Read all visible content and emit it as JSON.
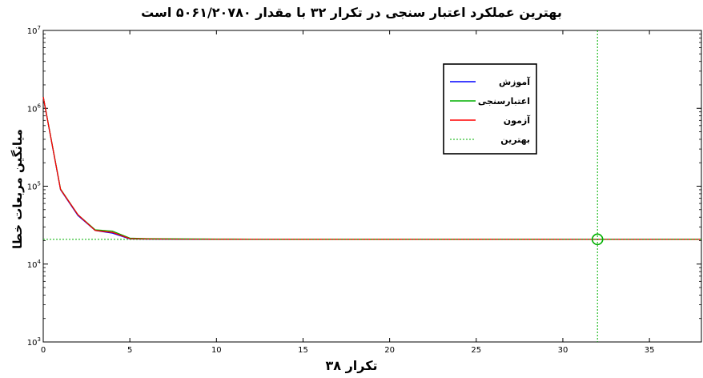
{
  "chart_data": {
    "type": "line",
    "title": "بهترین عملکرد اعتبار سنجی در تکرار ۳۲ با مقدار ۵۰۶۱/۲۰۷۸۰ است",
    "xlabel": "۳۸ تکرار",
    "ylabel": "میانگین مربعات خطا",
    "xlim": [
      0,
      38
    ],
    "ylim": [
      1000,
      10000000
    ],
    "yscale": "log",
    "x_ticks": [
      0,
      5,
      10,
      15,
      20,
      25,
      30,
      35
    ],
    "y_ticks": [
      {
        "value": 1000,
        "base": "10",
        "exp": "3"
      },
      {
        "value": 10000,
        "base": "10",
        "exp": "4"
      },
      {
        "value": 100000,
        "base": "10",
        "exp": "5"
      },
      {
        "value": 1000000,
        "base": "10",
        "exp": "6"
      },
      {
        "value": 10000000,
        "base": "10",
        "exp": "7"
      }
    ],
    "grid": false,
    "legend_position": "top-right",
    "series": [
      {
        "name": "آموزش",
        "color": "#0000ff",
        "style": "solid",
        "x": [
          0,
          1,
          2,
          3,
          4,
          5,
          6,
          7,
          8,
          9,
          10,
          11,
          12,
          13,
          14,
          15,
          16,
          17,
          18,
          19,
          20,
          21,
          22,
          23,
          24,
          25,
          26,
          27,
          28,
          29,
          30,
          31,
          32,
          33,
          34,
          35,
          36,
          37,
          38
        ],
        "y": [
          1400000,
          90000,
          42000,
          27000,
          25000,
          21000,
          20900,
          20850,
          20830,
          20820,
          20810,
          20805,
          20800,
          20800,
          20795,
          20790,
          20790,
          20788,
          20785,
          20785,
          20783,
          20782,
          20781,
          20781,
          20780,
          20780,
          20780,
          20780,
          20779,
          20779,
          20779,
          20779,
          20779,
          20779,
          20779,
          20779,
          20779,
          20779,
          20779
        ]
      },
      {
        "name": "اعتبارسنجی",
        "color": "#00b000",
        "style": "solid",
        "x": [
          0,
          1,
          2,
          3,
          4,
          5,
          6,
          7,
          8,
          9,
          10,
          11,
          12,
          13,
          14,
          15,
          16,
          17,
          18,
          19,
          20,
          21,
          22,
          23,
          24,
          25,
          26,
          27,
          28,
          29,
          30,
          31,
          32,
          33,
          34,
          35,
          36,
          37,
          38
        ],
        "y": [
          1400000,
          92000,
          43000,
          27500,
          26500,
          21500,
          21200,
          21100,
          21050,
          21000,
          20980,
          20950,
          20930,
          20910,
          20900,
          20890,
          20880,
          20870,
          20860,
          20850,
          20840,
          20830,
          20820,
          20810,
          20800,
          20795,
          20790,
          20788,
          20786,
          20784,
          20783,
          20782,
          20781,
          20782,
          20783,
          20784,
          20785,
          20786,
          20787
        ]
      },
      {
        "name": "آزمون",
        "color": "#ff0000",
        "style": "solid",
        "x": [
          0,
          1,
          2,
          3,
          4,
          5,
          6,
          7,
          8,
          9,
          10,
          11,
          12,
          13,
          14,
          15,
          16,
          17,
          18,
          19,
          20,
          21,
          22,
          23,
          24,
          25,
          26,
          27,
          28,
          29,
          30,
          31,
          32,
          33,
          34,
          35,
          36,
          37,
          38
        ],
        "y": [
          1400000,
          91000,
          43000,
          27000,
          25500,
          21200,
          21000,
          20950,
          20920,
          20900,
          20880,
          20870,
          20860,
          20850,
          20840,
          20830,
          20825,
          20820,
          20815,
          20810,
          20805,
          20800,
          20798,
          20796,
          20794,
          20792,
          20790,
          20788,
          20786,
          20785,
          20784,
          20783,
          20782,
          20782,
          20782,
          20782,
          20782,
          20782,
          20782
        ]
      },
      {
        "name": "بهترین",
        "color": "#00b000",
        "style": "dotted",
        "best_x": 32,
        "best_y": 20780.5061
      }
    ]
  }
}
